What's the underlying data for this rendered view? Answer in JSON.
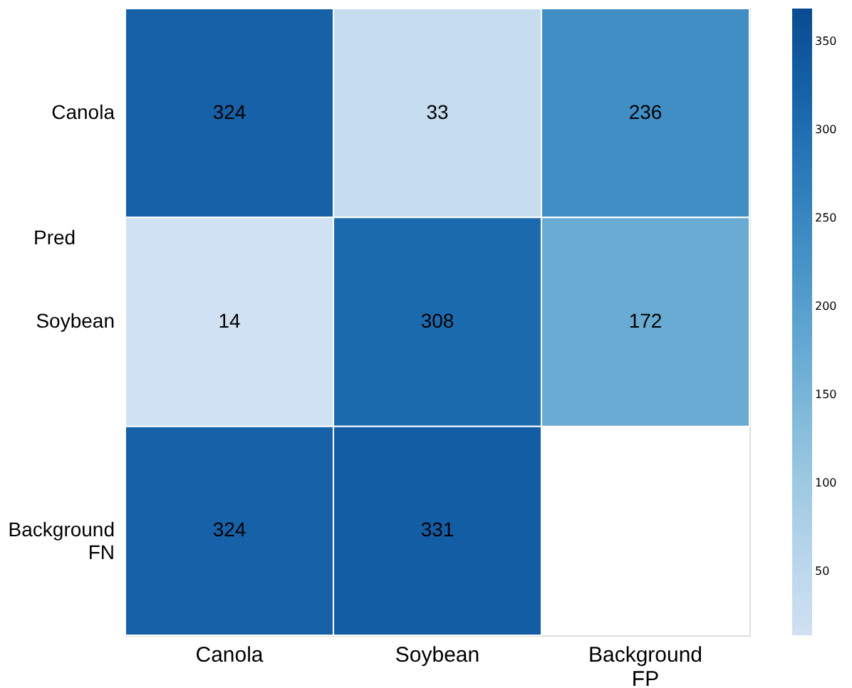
{
  "chart_data": {
    "type": "heatmap",
    "ylabel": "Pred",
    "categories": [
      "Canola",
      "Soybean",
      "Background FP"
    ],
    "y_categories": [
      "Canola",
      "Soybean",
      "Background FN"
    ],
    "cells": [
      [
        324,
        33,
        236
      ],
      [
        14,
        308,
        172
      ],
      [
        324,
        331,
        null
      ]
    ],
    "data_labels": true,
    "clim": [
      14,
      369
    ],
    "cticks": [
      50,
      100,
      150,
      200,
      250,
      300,
      350
    ]
  }
}
